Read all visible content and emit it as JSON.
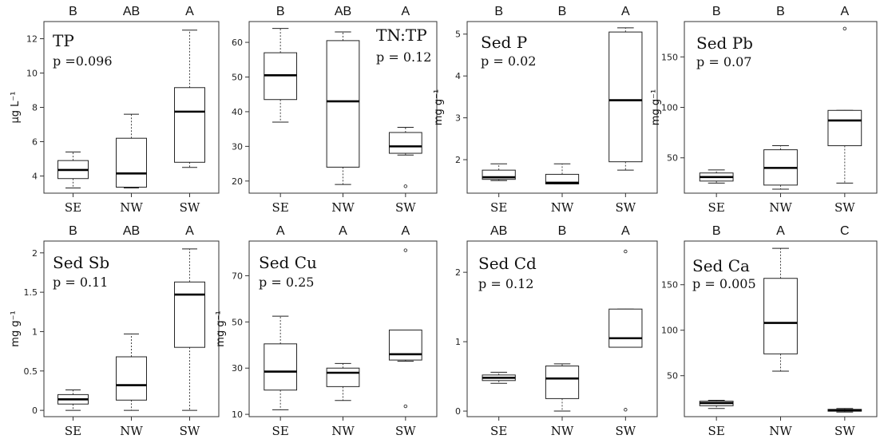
{
  "figure_title": "",
  "chart_data": [
    {
      "type": "box",
      "name": "TP",
      "ylabel": "μg L⁻¹",
      "pvalue": "p =0.096",
      "categories": [
        "SE",
        "NW",
        "SW"
      ],
      "letters": [
        "B",
        "AB",
        "A"
      ],
      "ylim": [
        3.0,
        13.0
      ],
      "yticks": [
        4,
        6,
        8,
        10,
        12
      ],
      "ytick_labels": [
        "4",
        "6",
        "8",
        "10",
        "12"
      ],
      "boxes": [
        {
          "whislo": 3.3,
          "q1": 3.85,
          "med": 4.35,
          "q3": 4.9,
          "whishi": 5.4,
          "fliers": []
        },
        {
          "whislo": 3.3,
          "q1": 3.35,
          "med": 4.15,
          "q3": 6.2,
          "whishi": 7.6,
          "fliers": []
        },
        {
          "whislo": 4.5,
          "q1": 4.8,
          "med": 7.75,
          "q3": 9.15,
          "whishi": 12.5,
          "fliers": []
        }
      ]
    },
    {
      "type": "box",
      "name": "TN:TP",
      "ylabel": "",
      "pvalue": "p = 0.12",
      "categories": [
        "SE",
        "NW",
        "SW"
      ],
      "letters": [
        "B",
        "AB",
        "A"
      ],
      "ylim": [
        16.5,
        66
      ],
      "yticks": [
        20,
        30,
        40,
        50,
        60
      ],
      "ytick_labels": [
        "20",
        "30",
        "40",
        "50",
        "60"
      ],
      "boxes": [
        {
          "whislo": 37,
          "q1": 43.5,
          "med": 50.5,
          "q3": 57,
          "whishi": 64,
          "fliers": []
        },
        {
          "whislo": 19,
          "q1": 24,
          "med": 43,
          "q3": 60.5,
          "whishi": 63,
          "fliers": []
        },
        {
          "whislo": 27.5,
          "q1": 28,
          "med": 30,
          "q3": 34,
          "whishi": 35.5,
          "fliers": [
            18.5
          ]
        }
      ]
    },
    {
      "type": "box",
      "name": "Sed P",
      "ylabel": "mg g⁻¹",
      "pvalue": "p = 0.02",
      "categories": [
        "SE",
        "NW",
        "SW"
      ],
      "letters": [
        "B",
        "B",
        "A"
      ],
      "ylim": [
        1.2,
        5.3
      ],
      "yticks": [
        2,
        3,
        4,
        5
      ],
      "ytick_labels": [
        "2",
        "3",
        "4",
        "5"
      ],
      "boxes": [
        {
          "whislo": 1.5,
          "q1": 1.53,
          "med": 1.58,
          "q3": 1.75,
          "whishi": 1.9,
          "fliers": []
        },
        {
          "whislo": 1.42,
          "q1": 1.42,
          "med": 1.45,
          "q3": 1.65,
          "whishi": 1.9,
          "fliers": []
        },
        {
          "whislo": 1.75,
          "q1": 1.95,
          "med": 3.42,
          "q3": 5.05,
          "whishi": 5.15,
          "fliers": []
        }
      ]
    },
    {
      "type": "box",
      "name": "Sed Pb",
      "ylabel": "mg g⁻¹",
      "pvalue": "p = 0.07",
      "categories": [
        "SE",
        "NW",
        "SW"
      ],
      "letters": [
        "B",
        "B",
        "A"
      ],
      "ylim": [
        15,
        185
      ],
      "yticks": [
        50,
        100,
        150
      ],
      "ytick_labels": [
        "50",
        "100",
        "150"
      ],
      "boxes": [
        {
          "whislo": 25,
          "q1": 27,
          "med": 31,
          "q3": 35,
          "whishi": 38,
          "fliers": []
        },
        {
          "whislo": 19,
          "q1": 23,
          "med": 40,
          "q3": 58,
          "whishi": 62,
          "fliers": []
        },
        {
          "whislo": 25,
          "q1": 62,
          "med": 87,
          "q3": 97,
          "whishi": 97,
          "fliers": [
            178
          ]
        }
      ]
    },
    {
      "type": "box",
      "name": "Sed Sb",
      "ylabel": "mg g⁻¹",
      "pvalue": "p = 0.11",
      "categories": [
        "SE",
        "NW",
        "SW"
      ],
      "letters": [
        "B",
        "AB",
        "A"
      ],
      "ylim": [
        -0.08,
        2.15
      ],
      "yticks": [
        0,
        0.5,
        1,
        1.5,
        2
      ],
      "ytick_labels": [
        "0",
        "0.5",
        "1",
        "1.5",
        "2"
      ],
      "boxes": [
        {
          "whislo": 0.0,
          "q1": 0.08,
          "med": 0.14,
          "q3": 0.2,
          "whishi": 0.26,
          "fliers": []
        },
        {
          "whislo": 0.0,
          "q1": 0.13,
          "med": 0.32,
          "q3": 0.68,
          "whishi": 0.97,
          "fliers": []
        },
        {
          "whislo": 0.0,
          "q1": 0.8,
          "med": 1.47,
          "q3": 1.63,
          "whishi": 2.05,
          "fliers": []
        }
      ]
    },
    {
      "type": "box",
      "name": "Sed Cu",
      "ylabel": "mg g⁻¹",
      "pvalue": "p = 0.25",
      "categories": [
        "SE",
        "NW",
        "SW"
      ],
      "letters": [
        "A",
        "A",
        "A"
      ],
      "ylim": [
        9,
        85
      ],
      "yticks": [
        10,
        30,
        50,
        70
      ],
      "ytick_labels": [
        "10",
        "30",
        "50",
        "70"
      ],
      "boxes": [
        {
          "whislo": 12,
          "q1": 20.5,
          "med": 28.5,
          "q3": 40.5,
          "whishi": 52.5,
          "fliers": []
        },
        {
          "whislo": 16,
          "q1": 22,
          "med": 28,
          "q3": 30,
          "whishi": 32,
          "fliers": []
        },
        {
          "whislo": 33,
          "q1": 33.5,
          "med": 36,
          "q3": 46.5,
          "whishi": 46.5,
          "fliers": [
            13.5,
            81
          ]
        }
      ]
    },
    {
      "type": "box",
      "name": "Sed Cd",
      "ylabel": "",
      "pvalue": "p = 0.12",
      "categories": [
        "SE",
        "NW",
        "SW"
      ],
      "letters": [
        "AB",
        "B",
        "A"
      ],
      "ylim": [
        -0.08,
        2.45
      ],
      "yticks": [
        0,
        1,
        2
      ],
      "ytick_labels": [
        "0",
        "1",
        "2"
      ],
      "boxes": [
        {
          "whislo": 0.4,
          "q1": 0.44,
          "med": 0.48,
          "q3": 0.52,
          "whishi": 0.56,
          "fliers": []
        },
        {
          "whislo": 0.0,
          "q1": 0.18,
          "med": 0.47,
          "q3": 0.65,
          "whishi": 0.68,
          "fliers": []
        },
        {
          "whislo": 0.92,
          "q1": 0.92,
          "med": 1.05,
          "q3": 1.47,
          "whishi": 1.47,
          "fliers": [
            0.02,
            2.3
          ]
        }
      ]
    },
    {
      "type": "box",
      "name": "Sed Ca",
      "ylabel": "",
      "pvalue": "p = 0.005",
      "categories": [
        "SE",
        "NW",
        "SW"
      ],
      "letters": [
        "B",
        "A",
        "C"
      ],
      "ylim": [
        5,
        198
      ],
      "yticks": [
        50,
        100,
        150
      ],
      "ytick_labels": [
        "50",
        "100",
        "150"
      ],
      "boxes": [
        {
          "whislo": 14,
          "q1": 17,
          "med": 20,
          "q3": 22,
          "whishi": 23,
          "fliers": []
        },
        {
          "whislo": 55,
          "q1": 74,
          "med": 108,
          "q3": 157,
          "whishi": 190,
          "fliers": []
        },
        {
          "whislo": 10,
          "q1": 11,
          "med": 12,
          "q3": 13,
          "whishi": 14,
          "fliers": []
        }
      ]
    }
  ]
}
